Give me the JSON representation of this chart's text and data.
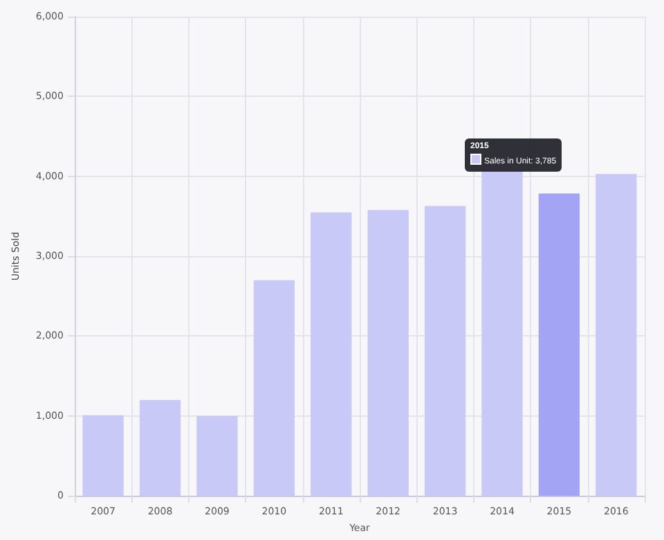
{
  "chart_data": {
    "type": "bar",
    "xlabel": "Year",
    "ylabel": "Units Sold",
    "categories": [
      "2007",
      "2008",
      "2009",
      "2010",
      "2011",
      "2012",
      "2013",
      "2014",
      "2015",
      "2016"
    ],
    "series": [
      {
        "color": "#c9c9f7",
        "colors": [
          "#c9c9f7",
          "#c9c9f7",
          "#c9c9f7",
          "#c9c9f7",
          "#c9c9f7",
          "#c9c9f7",
          "#c9c9f7",
          "#c9c9f7",
          "#a4a4f4",
          "#c9c9f7"
        ],
        "values": [
          1010,
          1200,
          1000,
          2700,
          3550,
          3580,
          3630,
          4080,
          3785,
          4030
        ]
      }
    ],
    "annotations": [
      "2015",
      "Sales in Unit: 3,785"
    ],
    "ylim": [
      0,
      6000
    ],
    "yticks": [
      {
        "value": 0,
        "label": "0"
      },
      {
        "value": 1000,
        "label": "1,000"
      },
      {
        "value": 2000,
        "label": "2,000"
      },
      {
        "value": 3000,
        "label": "3,000"
      },
      {
        "value": 4000,
        "label": "4,000"
      },
      {
        "value": 5000,
        "label": "5,000"
      },
      {
        "value": 6000,
        "label": "6,000"
      }
    ],
    "grid": true
  }
}
